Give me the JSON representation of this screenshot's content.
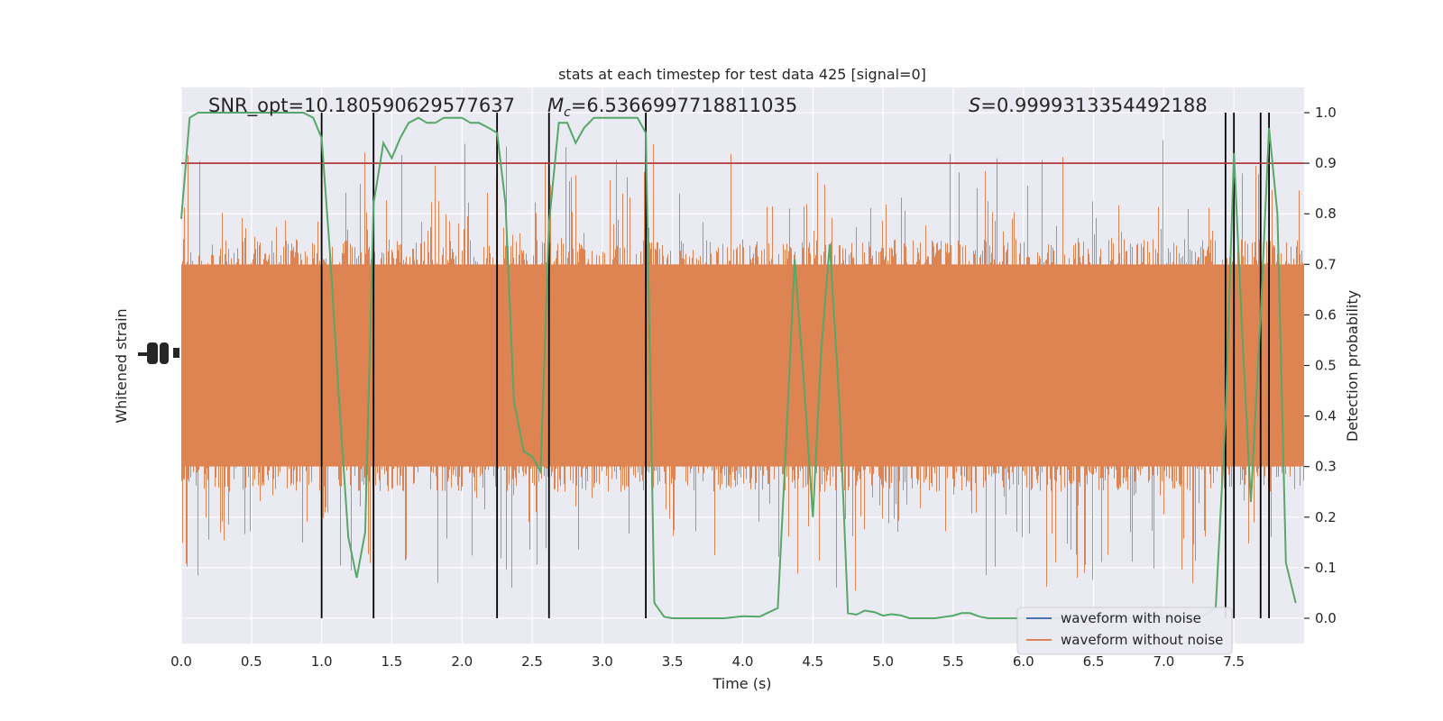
{
  "chart_data": {
    "type": "line",
    "title": "stats at each timestep for test data 425 [signal=0]",
    "xlabel": "Time (s)",
    "ylabel_left": "Whitened strain",
    "ylabel_right": "Detection probability",
    "xlim": [
      0.0,
      8.0
    ],
    "ylim_right": [
      -0.05,
      1.05
    ],
    "x_ticks": [
      "0.0",
      "0.5",
      "1.0",
      "1.5",
      "2.0",
      "2.5",
      "3.0",
      "3.5",
      "4.0",
      "4.5",
      "5.0",
      "5.5",
      "6.0",
      "6.5",
      "7.0",
      "7.5"
    ],
    "y_ticks_right": [
      "0.0",
      "0.1",
      "0.2",
      "0.3",
      "0.4",
      "0.5",
      "0.6",
      "0.7",
      "0.8",
      "0.9",
      "1.0"
    ],
    "grid": true,
    "legend_placement": "bottom-right",
    "annotations": {
      "snr": "SNR_opt=10.180590629577637",
      "mc_symbol": "M",
      "mc_sub": "c",
      "mc_value": "=6.5366997718811035",
      "s_symbol": "S",
      "s_value": "=0.9999313354492188"
    },
    "threshold": 0.9,
    "vertical_lines_x": [
      1.0,
      1.37,
      2.25,
      2.62,
      3.31,
      7.44,
      7.5,
      7.69,
      7.75
    ],
    "series": [
      {
        "name": "waveform with noise",
        "color": "#4c72b0"
      },
      {
        "name": "waveform without noise",
        "color": "#dd8452"
      }
    ],
    "detection_probability": {
      "color": "#55a868",
      "x": [
        0.0,
        0.06,
        0.12,
        0.19,
        0.25,
        0.31,
        0.37,
        0.44,
        0.5,
        0.56,
        0.62,
        0.69,
        0.75,
        0.81,
        0.87,
        0.94,
        1.0,
        1.06,
        1.12,
        1.19,
        1.25,
        1.31,
        1.37,
        1.44,
        1.5,
        1.56,
        1.62,
        1.69,
        1.75,
        1.81,
        1.87,
        1.94,
        2.0,
        2.06,
        2.12,
        2.19,
        2.25,
        2.31,
        2.37,
        2.44,
        2.5,
        2.56,
        2.62,
        2.69,
        2.75,
        2.81,
        2.87,
        2.94,
        3.0,
        3.06,
        3.12,
        3.19,
        3.25,
        3.31,
        3.37,
        3.44,
        3.5,
        3.62,
        3.75,
        3.87,
        4.0,
        4.12,
        4.25,
        4.31,
        4.37,
        4.44,
        4.5,
        4.56,
        4.62,
        4.69,
        4.75,
        4.81,
        4.87,
        4.94,
        5.0,
        5.06,
        5.12,
        5.19,
        5.25,
        5.37,
        5.5,
        5.56,
        5.62,
        5.69,
        5.75,
        5.87,
        6.0,
        6.25,
        6.5,
        6.75,
        7.0,
        7.25,
        7.37,
        7.44,
        7.5,
        7.56,
        7.62,
        7.69,
        7.75,
        7.81,
        7.87,
        7.94
      ],
      "y": [
        0.79,
        0.99,
        1.0,
        1.0,
        1.0,
        1.0,
        1.0,
        1.0,
        1.0,
        1.0,
        1.0,
        1.0,
        1.0,
        1.0,
        1.0,
        0.99,
        0.95,
        0.72,
        0.45,
        0.16,
        0.08,
        0.17,
        0.82,
        0.94,
        0.91,
        0.95,
        0.98,
        0.99,
        0.98,
        0.98,
        0.99,
        0.99,
        0.99,
        0.98,
        0.98,
        0.97,
        0.96,
        0.82,
        0.43,
        0.33,
        0.32,
        0.29,
        0.78,
        0.98,
        0.98,
        0.94,
        0.97,
        0.99,
        0.99,
        0.99,
        0.99,
        0.99,
        0.99,
        0.96,
        0.03,
        0.003,
        0.0,
        0.0,
        0.0,
        0.0,
        0.004,
        0.003,
        0.02,
        0.35,
        0.71,
        0.45,
        0.2,
        0.53,
        0.74,
        0.42,
        0.01,
        0.007,
        0.015,
        0.012,
        0.005,
        0.008,
        0.006,
        0.0,
        0.0,
        0.0,
        0.005,
        0.01,
        0.01,
        0.003,
        0.0,
        0.0,
        0.0,
        0.0,
        0.0,
        0.0,
        0.0,
        0.0,
        0.02,
        0.4,
        0.92,
        0.56,
        0.23,
        0.6,
        0.97,
        0.8,
        0.11,
        0.03
      ]
    }
  }
}
